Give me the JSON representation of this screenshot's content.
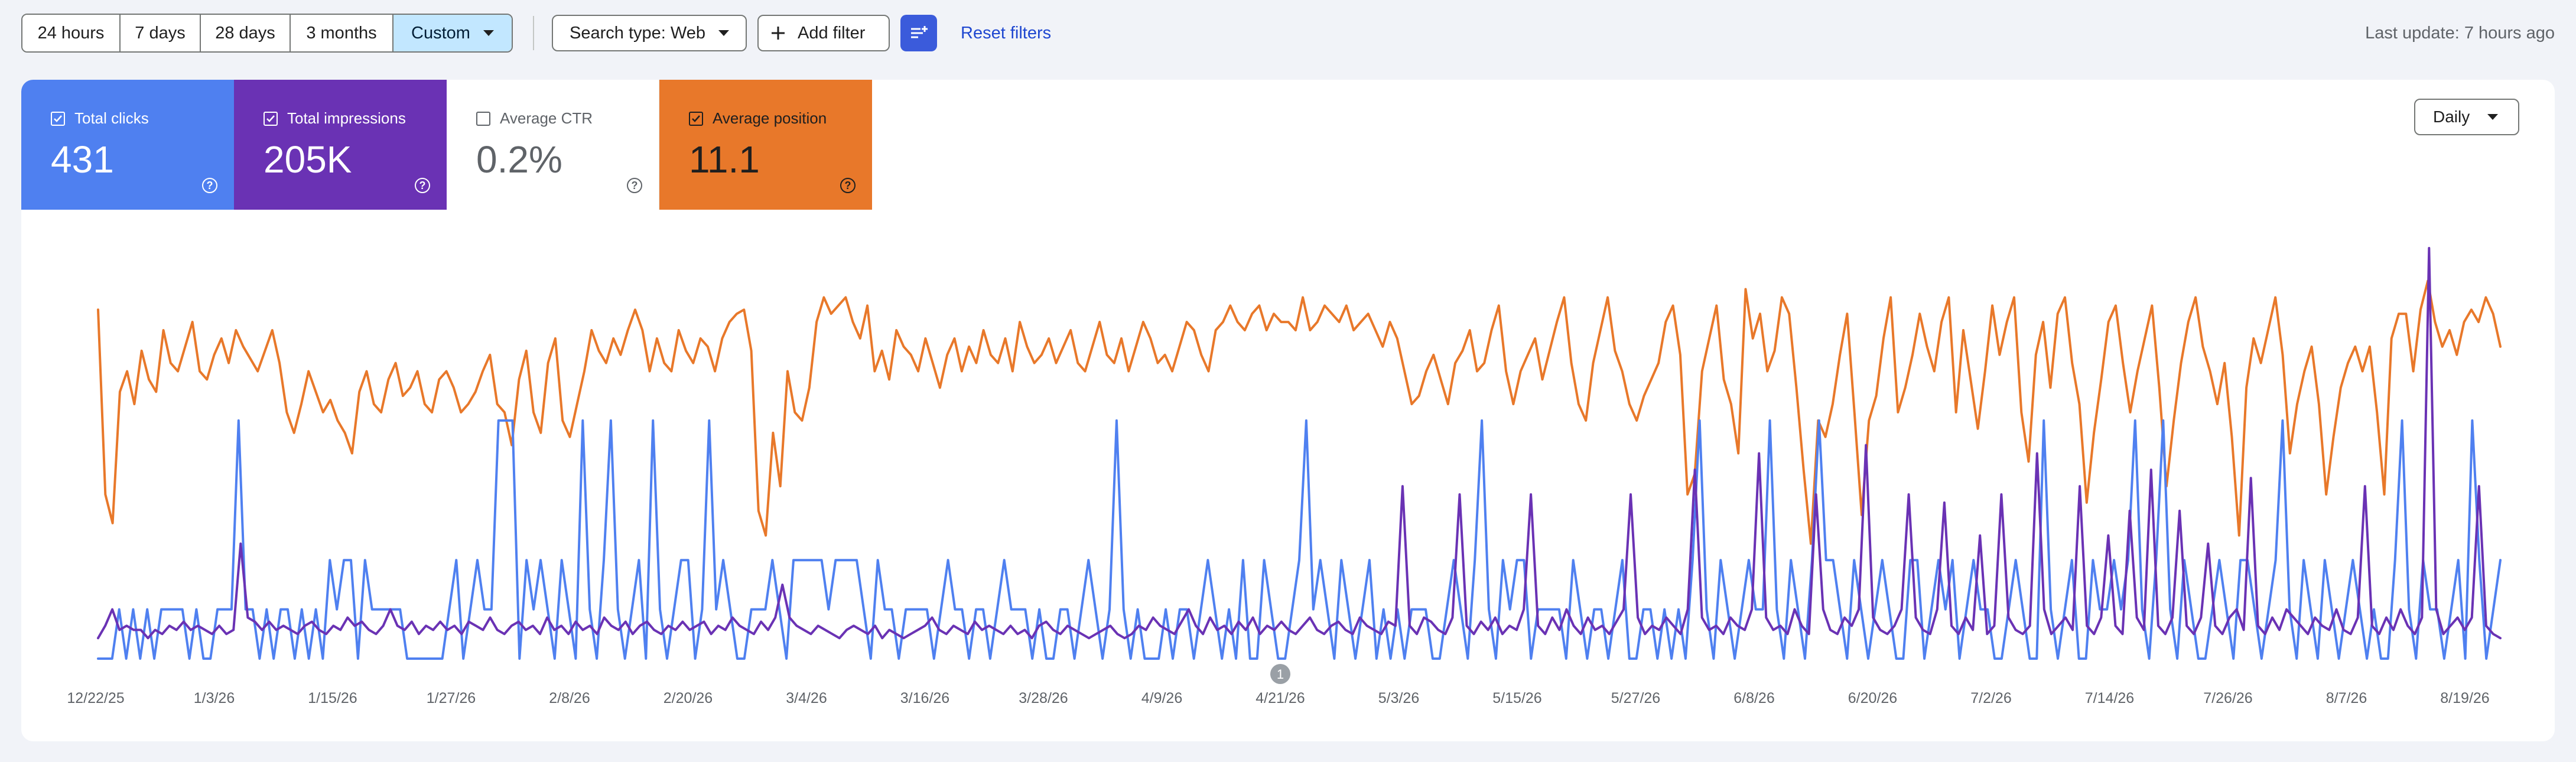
{
  "time_range": {
    "options": [
      "24 hours",
      "7 days",
      "28 days",
      "3 months",
      "Custom"
    ],
    "selected": "Custom"
  },
  "search_type": {
    "label": "Search type: Web"
  },
  "add_filter": {
    "label": "Add filter"
  },
  "reset_filters": {
    "label": "Reset filters"
  },
  "last_update": "Last update: 7 hours ago",
  "metrics": {
    "clicks": {
      "label": "Total clicks",
      "value": "431",
      "checked": true,
      "color": "#4f80f0"
    },
    "impressions": {
      "label": "Total impressions",
      "value": "205K",
      "checked": true,
      "color": "#6a32b4"
    },
    "ctr": {
      "label": "Average CTR",
      "value": "0.2%",
      "checked": false,
      "color": "#ffffff"
    },
    "position": {
      "label": "Average position",
      "value": "11.1",
      "checked": true,
      "color": "#e8782a"
    }
  },
  "granularity": {
    "selected": "Daily"
  },
  "icons": {
    "checkbox": "check-icon",
    "help": "help-circle-icon",
    "dropdown": "chevron-down-icon",
    "add": "plus-icon",
    "filter_settings": "tune-icon"
  },
  "chart_data": {
    "type": "line",
    "x_ticks": [
      "12/22/25",
      "1/3/26",
      "1/15/26",
      "1/27/26",
      "2/8/26",
      "2/20/26",
      "3/4/26",
      "3/16/26",
      "3/28/26",
      "4/9/26",
      "4/21/26",
      "5/3/26",
      "5/15/26",
      "5/27/26",
      "6/8/26",
      "6/20/26",
      "7/2/26",
      "7/14/26",
      "7/26/26",
      "8/7/26",
      "8/19/26"
    ],
    "x_range": [
      "12/22/25",
      "8/23/26"
    ],
    "annotation": {
      "date": "4/21/26",
      "label": "1"
    },
    "grid": false,
    "y_axis_shown": false,
    "series": [
      {
        "color": "#e8782a",
        "note": "Average position (inverted axis), relative scale",
        "values": [
          0.85,
          0.4,
          0.33,
          0.65,
          0.7,
          0.62,
          0.75,
          0.68,
          0.65,
          0.8,
          0.72,
          0.7,
          0.76,
          0.82,
          0.7,
          0.68,
          0.74,
          0.78,
          0.72,
          0.8,
          0.76,
          0.73,
          0.7,
          0.75,
          0.8,
          0.72,
          0.6,
          0.55,
          0.62,
          0.7,
          0.65,
          0.6,
          0.63,
          0.58,
          0.55,
          0.5,
          0.65,
          0.7,
          0.62,
          0.6,
          0.68,
          0.72,
          0.64,
          0.66,
          0.7,
          0.62,
          0.6,
          0.68,
          0.7,
          0.66,
          0.6,
          0.62,
          0.65,
          0.7,
          0.74,
          0.62,
          0.6,
          0.52,
          0.68,
          0.75,
          0.6,
          0.55,
          0.72,
          0.78,
          0.58,
          0.54,
          0.62,
          0.7,
          0.8,
          0.75,
          0.72,
          0.78,
          0.74,
          0.8,
          0.85,
          0.8,
          0.7,
          0.78,
          0.72,
          0.7,
          0.8,
          0.75,
          0.72,
          0.78,
          0.76,
          0.7,
          0.78,
          0.82,
          0.84,
          0.85,
          0.75,
          0.36,
          0.3,
          0.55,
          0.42,
          0.7,
          0.6,
          0.58,
          0.66,
          0.82,
          0.88,
          0.84,
          0.86,
          0.88,
          0.82,
          0.78,
          0.86,
          0.7,
          0.75,
          0.68,
          0.8,
          0.76,
          0.74,
          0.7,
          0.78,
          0.72,
          0.66,
          0.74,
          0.78,
          0.7,
          0.76,
          0.72,
          0.8,
          0.74,
          0.72,
          0.78,
          0.7,
          0.82,
          0.76,
          0.72,
          0.74,
          0.78,
          0.72,
          0.76,
          0.8,
          0.72,
          0.7,
          0.76,
          0.82,
          0.74,
          0.72,
          0.78,
          0.7,
          0.76,
          0.82,
          0.78,
          0.72,
          0.74,
          0.7,
          0.76,
          0.82,
          0.8,
          0.74,
          0.7,
          0.8,
          0.82,
          0.86,
          0.82,
          0.8,
          0.84,
          0.86,
          0.8,
          0.84,
          0.82,
          0.82,
          0.8,
          0.88,
          0.8,
          0.82,
          0.86,
          0.84,
          0.82,
          0.86,
          0.8,
          0.82,
          0.84,
          0.8,
          0.76,
          0.82,
          0.78,
          0.7,
          0.62,
          0.64,
          0.7,
          0.74,
          0.68,
          0.62,
          0.72,
          0.75,
          0.8,
          0.7,
          0.72,
          0.8,
          0.86,
          0.7,
          0.62,
          0.7,
          0.74,
          0.78,
          0.68,
          0.75,
          0.82,
          0.88,
          0.72,
          0.62,
          0.58,
          0.72,
          0.8,
          0.88,
          0.75,
          0.7,
          0.62,
          0.58,
          0.64,
          0.68,
          0.72,
          0.82,
          0.86,
          0.74,
          0.4,
          0.45,
          0.7,
          0.78,
          0.86,
          0.68,
          0.62,
          0.5,
          0.9,
          0.78,
          0.84,
          0.7,
          0.75,
          0.88,
          0.84,
          0.66,
          0.46,
          0.28,
          0.58,
          0.54,
          0.62,
          0.74,
          0.84,
          0.6,
          0.35,
          0.58,
          0.64,
          0.78,
          0.88,
          0.6,
          0.66,
          0.74,
          0.84,
          0.76,
          0.7,
          0.82,
          0.88,
          0.6,
          0.8,
          0.68,
          0.56,
          0.7,
          0.86,
          0.74,
          0.82,
          0.88,
          0.6,
          0.48,
          0.74,
          0.82,
          0.66,
          0.84,
          0.88,
          0.72,
          0.62,
          0.38,
          0.55,
          0.68,
          0.82,
          0.86,
          0.72,
          0.6,
          0.7,
          0.78,
          0.86,
          0.66,
          0.42,
          0.58,
          0.72,
          0.82,
          0.88,
          0.76,
          0.7,
          0.62,
          0.72,
          0.54,
          0.3,
          0.66,
          0.78,
          0.72,
          0.8,
          0.88,
          0.74,
          0.5,
          0.62,
          0.7,
          0.76,
          0.62,
          0.4,
          0.54,
          0.66,
          0.72,
          0.76,
          0.7,
          0.76,
          0.6,
          0.4,
          0.78,
          0.84,
          0.84,
          0.7,
          0.85,
          0.92,
          0.82,
          0.76,
          0.8,
          0.74,
          0.82,
          0.85,
          0.82,
          0.88,
          0.84,
          0.76
        ]
      },
      {
        "color": "#4f80f0",
        "note": "Total clicks, relative scale",
        "values": [
          0.0,
          0.0,
          0.0,
          0.12,
          0.0,
          0.12,
          0.0,
          0.12,
          0.0,
          0.12,
          0.12,
          0.12,
          0.12,
          0.0,
          0.12,
          0.0,
          0.0,
          0.12,
          0.12,
          0.12,
          0.58,
          0.12,
          0.12,
          0.0,
          0.12,
          0.0,
          0.12,
          0.12,
          0.0,
          0.12,
          0.0,
          0.12,
          0.0,
          0.24,
          0.12,
          0.24,
          0.24,
          0.0,
          0.24,
          0.12,
          0.12,
          0.12,
          0.12,
          0.12,
          0.0,
          0.0,
          0.0,
          0.0,
          0.0,
          0.0,
          0.12,
          0.24,
          0.0,
          0.12,
          0.24,
          0.12,
          0.12,
          0.58,
          0.58,
          0.58,
          0.0,
          0.24,
          0.12,
          0.24,
          0.12,
          0.0,
          0.24,
          0.12,
          0.0,
          0.58,
          0.12,
          0.0,
          0.24,
          0.58,
          0.12,
          0.0,
          0.12,
          0.24,
          0.0,
          0.58,
          0.12,
          0.0,
          0.12,
          0.24,
          0.24,
          0.0,
          0.12,
          0.58,
          0.12,
          0.24,
          0.12,
          0.0,
          0.0,
          0.12,
          0.12,
          0.12,
          0.24,
          0.12,
          0.0,
          0.24,
          0.24,
          0.24,
          0.24,
          0.24,
          0.12,
          0.24,
          0.24,
          0.24,
          0.24,
          0.12,
          0.0,
          0.24,
          0.12,
          0.12,
          0.0,
          0.12,
          0.12,
          0.12,
          0.12,
          0.0,
          0.12,
          0.24,
          0.12,
          0.12,
          0.0,
          0.12,
          0.12,
          0.0,
          0.12,
          0.24,
          0.12,
          0.12,
          0.12,
          0.0,
          0.12,
          0.0,
          0.0,
          0.12,
          0.12,
          0.0,
          0.12,
          0.24,
          0.12,
          0.0,
          0.12,
          0.58,
          0.12,
          0.0,
          0.12,
          0.0,
          0.0,
          0.0,
          0.12,
          0.0,
          0.12,
          0.12,
          0.0,
          0.12,
          0.24,
          0.12,
          0.0,
          0.12,
          0.0,
          0.24,
          0.0,
          0.0,
          0.24,
          0.12,
          0.0,
          0.0,
          0.12,
          0.24,
          0.58,
          0.12,
          0.24,
          0.12,
          0.0,
          0.24,
          0.12,
          0.0,
          0.12,
          0.24,
          0.0,
          0.12,
          0.0,
          0.12,
          0.0,
          0.12,
          0.12,
          0.12,
          0.0,
          0.0,
          0.12,
          0.24,
          0.12,
          0.0,
          0.24,
          0.58,
          0.12,
          0.0,
          0.24,
          0.12,
          0.24,
          0.24,
          0.0,
          0.12,
          0.12,
          0.12,
          0.12,
          0.0,
          0.24,
          0.12,
          0.0,
          0.12,
          0.12,
          0.0,
          0.12,
          0.24,
          0.0,
          0.0,
          0.12,
          0.12,
          0.0,
          0.12,
          0.0,
          0.12,
          0.0,
          0.24,
          0.58,
          0.12,
          0.0,
          0.24,
          0.12,
          0.0,
          0.12,
          0.24,
          0.12,
          0.12,
          0.58,
          0.12,
          0.0,
          0.24,
          0.12,
          0.0,
          0.24,
          0.58,
          0.24,
          0.24,
          0.12,
          0.0,
          0.24,
          0.12,
          0.0,
          0.12,
          0.24,
          0.12,
          0.0,
          0.0,
          0.24,
          0.24,
          0.0,
          0.12,
          0.24,
          0.12,
          0.24,
          0.0,
          0.12,
          0.24,
          0.12,
          0.12,
          0.0,
          0.0,
          0.12,
          0.24,
          0.12,
          0.0,
          0.0,
          0.58,
          0.12,
          0.0,
          0.12,
          0.24,
          0.0,
          0.0,
          0.24,
          0.12,
          0.12,
          0.24,
          0.12,
          0.24,
          0.58,
          0.12,
          0.0,
          0.24,
          0.58,
          0.12,
          0.0,
          0.24,
          0.12,
          0.0,
          0.0,
          0.12,
          0.24,
          0.12,
          0.0,
          0.24,
          0.24,
          0.12,
          0.0,
          0.12,
          0.24,
          0.58,
          0.12,
          0.0,
          0.24,
          0.12,
          0.0,
          0.24,
          0.12,
          0.0,
          0.12,
          0.24,
          0.12,
          0.0,
          0.12,
          0.0,
          0.0,
          0.24,
          0.58,
          0.12,
          0.0,
          0.24,
          0.12,
          0.12,
          0.0,
          0.12,
          0.24,
          0.0,
          0.58,
          0.24,
          0.0,
          0.12,
          0.24
        ]
      },
      {
        "color": "#6a32b4",
        "note": "Total impressions, relative scale",
        "values": [
          0.05,
          0.08,
          0.12,
          0.07,
          0.08,
          0.07,
          0.07,
          0.05,
          0.07,
          0.06,
          0.08,
          0.07,
          0.09,
          0.07,
          0.08,
          0.07,
          0.06,
          0.08,
          0.06,
          0.07,
          0.28,
          0.1,
          0.09,
          0.07,
          0.09,
          0.07,
          0.08,
          0.07,
          0.06,
          0.08,
          0.09,
          0.07,
          0.06,
          0.08,
          0.07,
          0.1,
          0.08,
          0.09,
          0.07,
          0.06,
          0.08,
          0.12,
          0.08,
          0.07,
          0.09,
          0.06,
          0.08,
          0.07,
          0.09,
          0.07,
          0.08,
          0.06,
          0.09,
          0.08,
          0.07,
          0.1,
          0.07,
          0.06,
          0.08,
          0.09,
          0.07,
          0.08,
          0.06,
          0.1,
          0.07,
          0.08,
          0.06,
          0.09,
          0.07,
          0.08,
          0.06,
          0.1,
          0.08,
          0.07,
          0.09,
          0.06,
          0.08,
          0.09,
          0.07,
          0.06,
          0.08,
          0.07,
          0.09,
          0.07,
          0.08,
          0.09,
          0.06,
          0.08,
          0.07,
          0.1,
          0.08,
          0.07,
          0.06,
          0.09,
          0.07,
          0.1,
          0.18,
          0.1,
          0.08,
          0.07,
          0.06,
          0.08,
          0.07,
          0.06,
          0.05,
          0.07,
          0.08,
          0.07,
          0.06,
          0.08,
          0.05,
          0.07,
          0.06,
          0.05,
          0.06,
          0.07,
          0.08,
          0.1,
          0.07,
          0.06,
          0.08,
          0.07,
          0.06,
          0.09,
          0.07,
          0.08,
          0.07,
          0.06,
          0.08,
          0.06,
          0.07,
          0.05,
          0.08,
          0.09,
          0.07,
          0.06,
          0.08,
          0.07,
          0.06,
          0.05,
          0.06,
          0.07,
          0.08,
          0.06,
          0.05,
          0.06,
          0.08,
          0.07,
          0.1,
          0.08,
          0.07,
          0.06,
          0.09,
          0.12,
          0.08,
          0.06,
          0.1,
          0.07,
          0.08,
          0.06,
          0.09,
          0.07,
          0.1,
          0.06,
          0.08,
          0.07,
          0.09,
          0.07,
          0.06,
          0.08,
          0.1,
          0.07,
          0.06,
          0.08,
          0.09,
          0.07,
          0.06,
          0.1,
          0.08,
          0.07,
          0.06,
          0.09,
          0.08,
          0.42,
          0.08,
          0.06,
          0.1,
          0.09,
          0.07,
          0.06,
          0.1,
          0.4,
          0.08,
          0.06,
          0.09,
          0.07,
          0.1,
          0.06,
          0.08,
          0.07,
          0.12,
          0.4,
          0.08,
          0.06,
          0.1,
          0.07,
          0.12,
          0.08,
          0.06,
          0.1,
          0.07,
          0.08,
          0.06,
          0.09,
          0.12,
          0.4,
          0.1,
          0.06,
          0.08,
          0.07,
          0.1,
          0.08,
          0.06,
          0.12,
          0.46,
          0.1,
          0.07,
          0.08,
          0.06,
          0.1,
          0.08,
          0.07,
          0.12,
          0.5,
          0.1,
          0.07,
          0.08,
          0.06,
          0.12,
          0.08,
          0.06,
          0.4,
          0.12,
          0.07,
          0.06,
          0.1,
          0.08,
          0.12,
          0.52,
          0.1,
          0.07,
          0.06,
          0.08,
          0.12,
          0.4,
          0.1,
          0.07,
          0.06,
          0.12,
          0.38,
          0.08,
          0.06,
          0.1,
          0.07,
          0.3,
          0.06,
          0.08,
          0.4,
          0.1,
          0.07,
          0.06,
          0.08,
          0.5,
          0.12,
          0.06,
          0.08,
          0.1,
          0.07,
          0.42,
          0.08,
          0.06,
          0.1,
          0.3,
          0.08,
          0.06,
          0.36,
          0.1,
          0.07,
          0.46,
          0.08,
          0.06,
          0.1,
          0.36,
          0.08,
          0.06,
          0.1,
          0.28,
          0.08,
          0.06,
          0.1,
          0.12,
          0.07,
          0.44,
          0.08,
          0.06,
          0.1,
          0.07,
          0.12,
          0.1,
          0.08,
          0.06,
          0.1,
          0.08,
          0.07,
          0.12,
          0.07,
          0.06,
          0.1,
          0.42,
          0.08,
          0.06,
          0.1,
          0.07,
          0.12,
          0.08,
          0.06,
          0.1,
          1.0,
          0.12,
          0.06,
          0.08,
          0.1,
          0.07,
          0.1,
          0.42,
          0.08,
          0.06,
          0.05
        ]
      }
    ]
  }
}
